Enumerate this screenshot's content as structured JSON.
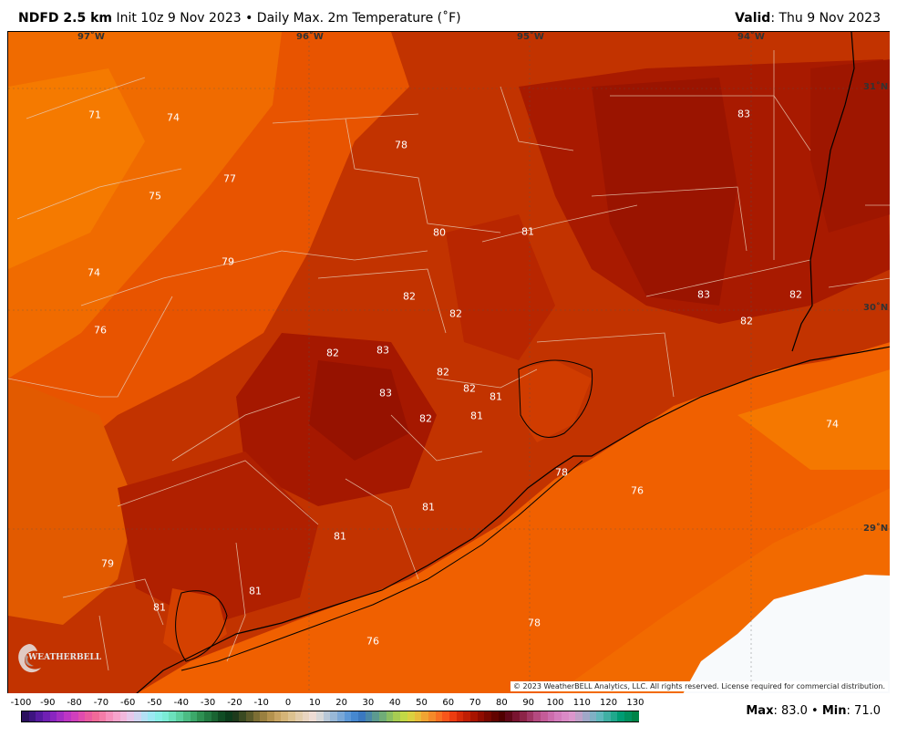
{
  "header": {
    "model": "NDFD 2.5 km",
    "subtitle": "Init 10z 9 Nov 2023 • Daily Max. 2m Temperature (˚F)",
    "valid_label": "Valid",
    "valid_value": ": Thu 9 Nov 2023"
  },
  "map": {
    "longitude_labels": [
      "97˚W",
      "96˚W",
      "95˚W",
      "94˚W"
    ],
    "latitude_labels": [
      "31˚N",
      "30˚N",
      "29˚N"
    ],
    "temperature_labels": [
      "71",
      "74",
      "78",
      "83",
      "77",
      "75",
      "80",
      "81",
      "74",
      "79",
      "82",
      "82",
      "83",
      "82",
      "76",
      "82",
      "83",
      "82",
      "82",
      "81",
      "83",
      "82",
      "81",
      "74",
      "82",
      "78",
      "76",
      "81",
      "81",
      "79",
      "81",
      "81",
      "78",
      "76"
    ],
    "copyright": "© 2023 WeatherBELL Analytics, LLC. All rights reserved. License required for commercial distribution.",
    "logo_text": "WEATHERBELL"
  },
  "colorbar": {
    "ticks": [
      "-100",
      "-90",
      "-80",
      "-70",
      "-60",
      "-50",
      "-40",
      "-30",
      "-20",
      "-10",
      "0",
      "10",
      "20",
      "30",
      "40",
      "50",
      "60",
      "70",
      "80",
      "90",
      "100",
      "110",
      "120",
      "130"
    ],
    "colors": [
      "#2b0f5e",
      "#3d1480",
      "#561aa0",
      "#7020b4",
      "#8a26c0",
      "#a42ec4",
      "#be36c4",
      "#d040bc",
      "#e04cae",
      "#ea5aa0",
      "#f06a98",
      "#f47ca8",
      "#f690bc",
      "#f6a4cc",
      "#f2b8dc",
      "#e6c8ea",
      "#d0d4f0",
      "#b4e0f4",
      "#9ce8f2",
      "#88eee6",
      "#7cecd6",
      "#6ce0bc",
      "#5cd0a0",
      "#4cbc84",
      "#3ca86a",
      "#2e9052",
      "#237a42",
      "#1a6432",
      "#104c24",
      "#0c3c1c",
      "#1e3a1c",
      "#3a4a22",
      "#5a5a2a",
      "#7c6e34",
      "#9a8040",
      "#b4924e",
      "#c8a462",
      "#d4b478",
      "#dcc290",
      "#e2ccaa",
      "#e8d4c0",
      "#eedcd4",
      "#d8d8d8",
      "#b8c8d8",
      "#98b8d8",
      "#7aa8d8",
      "#5c98d8",
      "#4688d0",
      "#3a78c0",
      "#4a88a8",
      "#5c9a90",
      "#70ac78",
      "#8abe62",
      "#a6cc52",
      "#c2d846",
      "#dad040",
      "#e8bc3a",
      "#f0a432",
      "#f48a2a",
      "#f87022",
      "#f8561a",
      "#ec3c10",
      "#d62a08",
      "#c01e04",
      "#a81400",
      "#900c00",
      "#780800",
      "#620400",
      "#500000",
      "#600818",
      "#781430",
      "#8c2448",
      "#a03664",
      "#b44a80",
      "#c45c98",
      "#cc6cac",
      "#d47cbc",
      "#da8ac6",
      "#dc96cc",
      "#c0a0c8",
      "#a0a8c8",
      "#80b0c4",
      "#60b8bc",
      "#40b0a4",
      "#20a88c",
      "#009c74",
      "#00905e",
      "#008448"
    ],
    "max_label": "Max",
    "max_value": ": 83.0 •",
    "min_label": "Min",
    "min_value": ": 71.0"
  }
}
